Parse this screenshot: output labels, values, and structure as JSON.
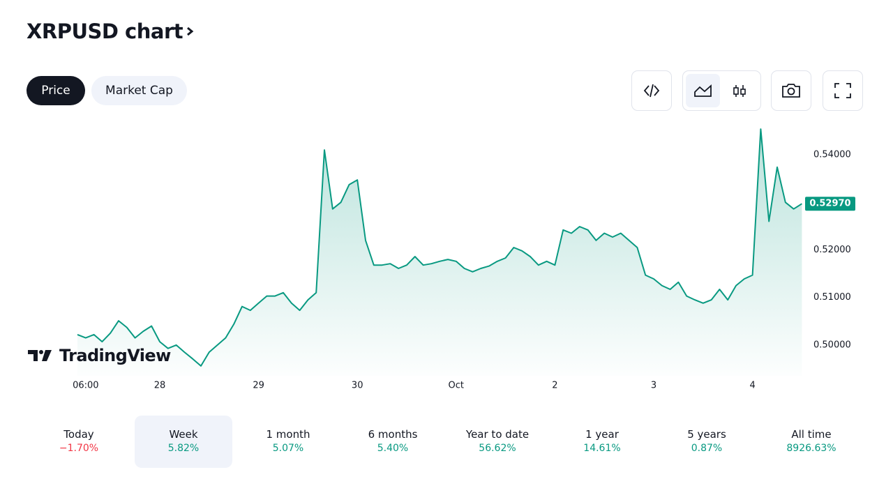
{
  "header": {
    "title": "XRPUSD chart"
  },
  "tabs": {
    "items": [
      "Price",
      "Market Cap"
    ],
    "selected": "Price"
  },
  "chart_data": {
    "type": "line",
    "color": "#089981",
    "watermark": "TradingView",
    "categories": [
      null,
      "06:00",
      null,
      null,
      null,
      null,
      null,
      null,
      null,
      null,
      "28",
      null,
      null,
      null,
      null,
      null,
      null,
      null,
      null,
      null,
      null,
      null,
      "29",
      null,
      null,
      null,
      null,
      null,
      null,
      null,
      null,
      null,
      null,
      null,
      "30",
      null,
      null,
      null,
      null,
      null,
      null,
      null,
      null,
      null,
      null,
      null,
      "Oct",
      null,
      null,
      null,
      null,
      null,
      null,
      null,
      null,
      null,
      null,
      null,
      "2",
      null,
      null,
      null,
      null,
      null,
      null,
      null,
      null,
      null,
      null,
      null,
      "3",
      null,
      null,
      null,
      null,
      null,
      null,
      null,
      null,
      null,
      null,
      null,
      "4",
      null,
      null,
      null,
      null,
      null,
      null
    ],
    "values": [
      0.5022,
      0.5015,
      0.5022,
      0.5007,
      0.5025,
      0.5051,
      0.5037,
      0.5015,
      0.5029,
      0.504,
      0.5007,
      0.4993,
      0.5,
      0.4985,
      0.4971,
      0.4956,
      0.4985,
      0.5,
      0.5015,
      0.5044,
      0.5081,
      0.5073,
      0.5088,
      0.5103,
      0.5103,
      0.511,
      0.5088,
      0.5073,
      0.5095,
      0.511,
      0.541,
      0.5286,
      0.53,
      0.5337,
      0.5347,
      0.522,
      0.5168,
      0.5168,
      0.5171,
      0.5161,
      0.5168,
      0.5186,
      0.5168,
      0.5171,
      0.5176,
      0.518,
      0.5176,
      0.5161,
      0.5154,
      0.5161,
      0.5166,
      0.5176,
      0.5183,
      0.5205,
      0.5198,
      0.5186,
      0.5168,
      0.5176,
      0.5168,
      0.5242,
      0.5235,
      0.5249,
      0.5242,
      0.522,
      0.5235,
      0.5227,
      0.5235,
      0.522,
      0.5205,
      0.5147,
      0.5139,
      0.5125,
      0.5117,
      0.5132,
      0.5103,
      0.5095,
      0.5088,
      0.5095,
      0.5117,
      0.5095,
      0.5125,
      0.5139,
      0.5147,
      0.5454,
      0.526,
      0.5374,
      0.53,
      0.5286,
      0.5297
    ],
    "ylim": [
      0.495,
      0.546
    ],
    "yticks": [
      {
        "value": 0.5,
        "label": "0.50000"
      },
      {
        "value": 0.51,
        "label": "0.51000"
      },
      {
        "value": 0.52,
        "label": "0.52000"
      },
      {
        "value": 0.54,
        "label": "0.54000"
      }
    ],
    "last_price": {
      "value": 0.5297,
      "label": "0.52970"
    }
  },
  "performance": {
    "up_color": "#089981",
    "down_color": "#f23645",
    "selected": "Week",
    "periods": [
      {
        "name": "Today",
        "change": "−1.70%"
      },
      {
        "name": "Week",
        "change": "5.82%"
      },
      {
        "name": "1 month",
        "change": "5.07%"
      },
      {
        "name": "6 months",
        "change": "5.40%"
      },
      {
        "name": "Year to date",
        "change": "56.62%"
      },
      {
        "name": "1 year",
        "change": "14.61%"
      },
      {
        "name": "5 years",
        "change": "0.87%"
      },
      {
        "name": "All time",
        "change": "8926.63%"
      }
    ]
  }
}
